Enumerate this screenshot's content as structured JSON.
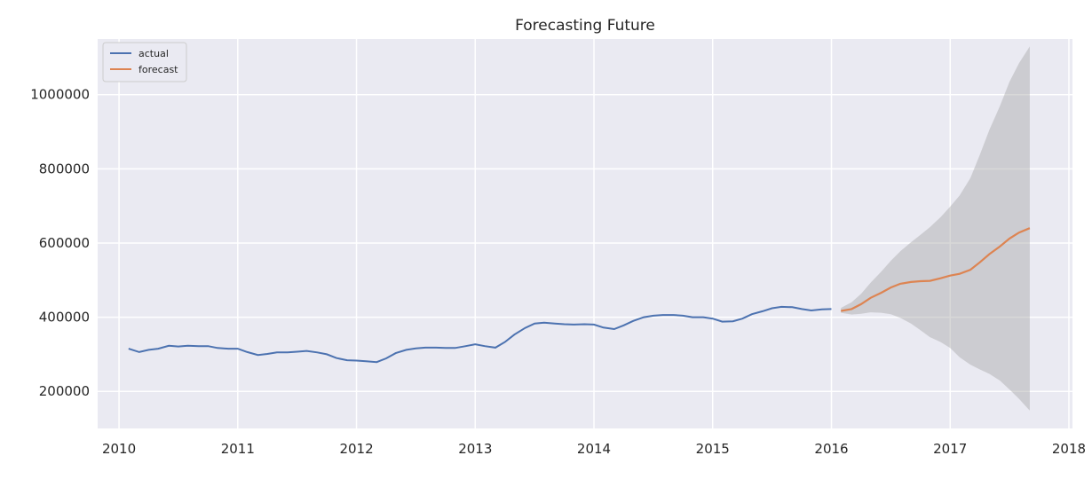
{
  "chart_data": {
    "type": "line",
    "title": "Forecasting Future",
    "xlabel": "",
    "ylabel": "",
    "xlim": [
      2009.82,
      2018.03
    ],
    "ylim": [
      100000,
      1150000
    ],
    "x_ticks": [
      2010,
      2011,
      2012,
      2013,
      2014,
      2015,
      2016,
      2017,
      2018
    ],
    "x_tick_labels": [
      "2010",
      "2011",
      "2012",
      "2013",
      "2014",
      "2015",
      "2016",
      "2017",
      "2018"
    ],
    "y_ticks": [
      200000,
      400000,
      600000,
      800000,
      1000000
    ],
    "y_tick_labels": [
      "200000",
      "400000",
      "600000",
      "800000",
      "1000000"
    ],
    "grid": true,
    "legend": {
      "position": "top-left",
      "entries": [
        "actual",
        "forecast"
      ]
    },
    "colors": {
      "actual": "#4c72b0",
      "forecast": "#dd8452",
      "band": "#a8a8a8",
      "background": "#eaeaf2",
      "grid": "#ffffff"
    },
    "series": [
      {
        "name": "actual",
        "x": [
          2010.08,
          2010.17,
          2010.25,
          2010.33,
          2010.42,
          2010.5,
          2010.58,
          2010.67,
          2010.75,
          2010.83,
          2010.92,
          2011.0,
          2011.08,
          2011.17,
          2011.25,
          2011.33,
          2011.42,
          2011.5,
          2011.58,
          2011.67,
          2011.75,
          2011.83,
          2011.92,
          2012.0,
          2012.08,
          2012.17,
          2012.25,
          2012.33,
          2012.42,
          2012.5,
          2012.58,
          2012.67,
          2012.75,
          2012.83,
          2012.92,
          2013.0,
          2013.08,
          2013.17,
          2013.25,
          2013.33,
          2013.42,
          2013.5,
          2013.58,
          2013.67,
          2013.75,
          2013.83,
          2013.92,
          2014.0,
          2014.08,
          2014.17,
          2014.25,
          2014.33,
          2014.42,
          2014.5,
          2014.58,
          2014.67,
          2014.75,
          2014.83,
          2014.92,
          2015.0,
          2015.08,
          2015.17,
          2015.25,
          2015.33,
          2015.42,
          2015.5,
          2015.58,
          2015.67,
          2015.75,
          2015.83,
          2015.92,
          2016.0
        ],
        "values": [
          315000,
          306000,
          312000,
          315000,
          323000,
          321000,
          323000,
          322000,
          322000,
          317000,
          315000,
          315000,
          306000,
          298000,
          301000,
          305000,
          305000,
          307000,
          309000,
          305000,
          300000,
          290000,
          284000,
          283000,
          281000,
          279000,
          289000,
          303000,
          312000,
          316000,
          318000,
          318000,
          317000,
          317000,
          322000,
          327000,
          322000,
          318000,
          333000,
          353000,
          371000,
          383000,
          385000,
          383000,
          381000,
          380000,
          381000,
          380000,
          372000,
          368000,
          378000,
          390000,
          400000,
          404000,
          406000,
          406000,
          404000,
          400000,
          400000,
          396000,
          388000,
          389000,
          396000,
          408000,
          416000,
          424000,
          428000,
          427000,
          422000,
          418000,
          421000,
          422000
        ]
      },
      {
        "name": "forecast",
        "x": [
          2016.08,
          2016.17,
          2016.25,
          2016.33,
          2016.42,
          2016.5,
          2016.58,
          2016.67,
          2016.75,
          2016.83,
          2016.92,
          2017.0,
          2017.08,
          2017.17,
          2017.25,
          2017.33,
          2017.42,
          2017.5,
          2017.58,
          2017.67
        ],
        "values": [
          417000,
          422000,
          435000,
          452000,
          466000,
          480000,
          490000,
          495000,
          497000,
          498000,
          505000,
          512000,
          517000,
          528000,
          548000,
          570000,
          591000,
          612000,
          628000,
          640000
        ],
        "lower": [
          412000,
          407000,
          409000,
          413000,
          412000,
          408000,
          398000,
          383000,
          365000,
          346000,
          333000,
          317000,
          292000,
          272000,
          259000,
          247000,
          229000,
          205000,
          180000,
          148000
        ],
        "upper": [
          425000,
          440000,
          463000,
          493000,
          523000,
          552000,
          578000,
          602000,
          622000,
          643000,
          670000,
          698000,
          728000,
          775000,
          838000,
          905000,
          970000,
          1035000,
          1085000,
          1130000
        ]
      }
    ]
  }
}
